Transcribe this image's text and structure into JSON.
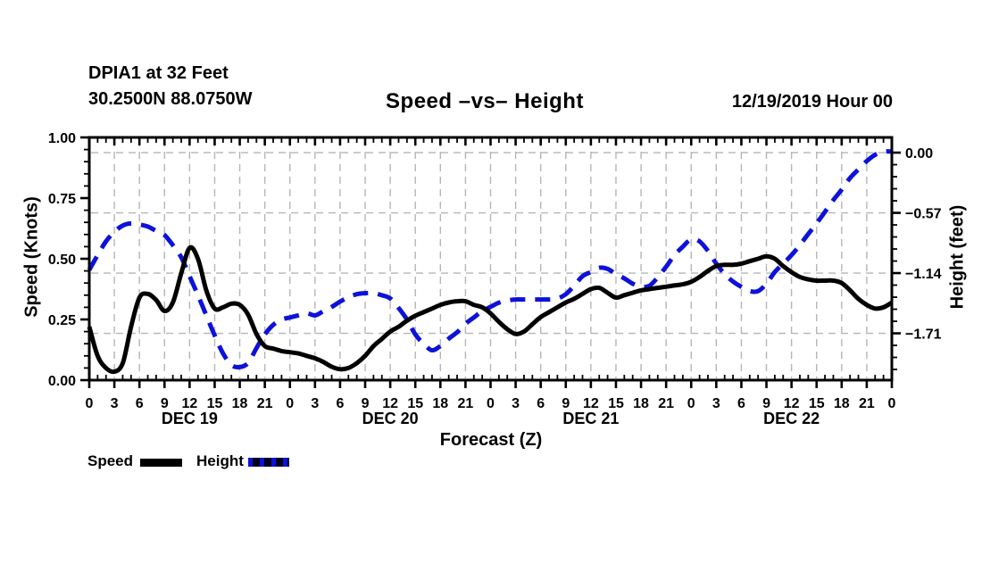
{
  "header": {
    "station": "DPIA1 at 32 Feet",
    "coords": "30.2500N 88.0750W",
    "title": "Speed –vs– Height",
    "datetime": "12/19/2019 Hour 00"
  },
  "axes": {
    "left_title": "Speed (Knots)",
    "right_title": "Height (feet)",
    "x_title": "Forecast (Z)"
  },
  "legend": {
    "position": "bottom-left",
    "speed_label": "Speed",
    "height_label": "Height"
  },
  "colors": {
    "speed_line": "#000000",
    "height_line": "#0d12d9",
    "grid": "#b5b5b5",
    "text": "#000000",
    "background": "#ffffff"
  },
  "chart_data": {
    "type": "line",
    "title": "Speed –vs– Height",
    "xlabel": "Forecast (Z)",
    "x_start_hour": 0,
    "x_step_hours": 1,
    "x_hours_total": 96,
    "x_tick_labels": [
      "0",
      "3",
      "6",
      "9",
      "12",
      "15",
      "18",
      "21",
      "0",
      "3",
      "6",
      "9",
      "12",
      "15",
      "18",
      "21",
      "0",
      "3",
      "6",
      "9",
      "12",
      "15",
      "18",
      "21",
      "0",
      "3",
      "6",
      "9",
      "12",
      "15",
      "18",
      "21",
      "0"
    ],
    "day_labels": [
      "DEC 19",
      "DEC 20",
      "DEC 21",
      "DEC 22"
    ],
    "grid": "dashed, vertical every 3h, horizontal at right-axis ticks",
    "left_axis": {
      "label": "Speed (Knots)",
      "min": 0.0,
      "max": 1.0,
      "tick_values": [
        0.0,
        0.25,
        0.5,
        0.75,
        1.0
      ],
      "tick_labels": [
        "0.00",
        "0.25",
        "0.50",
        "0.75",
        "1.00"
      ],
      "minor_step": 0.05
    },
    "right_axis": {
      "label": "Height (feet)",
      "min": -2.153,
      "max": 0.144,
      "tick_values": [
        0.0,
        -0.57,
        -1.14,
        -1.71
      ],
      "tick_labels": [
        "0.00",
        "−0.57",
        "−1.14",
        "−1.71"
      ],
      "minor_step": 0.114
    },
    "series": [
      {
        "name": "Speed",
        "axis": "left",
        "units": "knots",
        "style": "solid-black",
        "values": [
          0.22,
          0.1,
          0.05,
          0.035,
          0.07,
          0.22,
          0.34,
          0.355,
          0.33,
          0.285,
          0.32,
          0.44,
          0.545,
          0.5,
          0.37,
          0.295,
          0.3,
          0.315,
          0.31,
          0.27,
          0.19,
          0.14,
          0.13,
          0.12,
          0.115,
          0.11,
          0.1,
          0.09,
          0.075,
          0.055,
          0.045,
          0.05,
          0.07,
          0.1,
          0.14,
          0.17,
          0.2,
          0.22,
          0.245,
          0.265,
          0.28,
          0.295,
          0.31,
          0.32,
          0.325,
          0.325,
          0.31,
          0.3,
          0.275,
          0.24,
          0.21,
          0.19,
          0.2,
          0.23,
          0.26,
          0.28,
          0.3,
          0.32,
          0.335,
          0.355,
          0.375,
          0.38,
          0.36,
          0.34,
          0.35,
          0.36,
          0.37,
          0.375,
          0.38,
          0.385,
          0.39,
          0.395,
          0.405,
          0.425,
          0.45,
          0.47,
          0.475,
          0.475,
          0.48,
          0.49,
          0.5,
          0.51,
          0.5,
          0.47,
          0.445,
          0.425,
          0.415,
          0.41,
          0.41,
          0.41,
          0.4,
          0.37,
          0.335,
          0.31,
          0.295,
          0.3,
          0.32
        ]
      },
      {
        "name": "Height",
        "axis": "right",
        "units": "feet",
        "style": "dashed-blue",
        "values": [
          -1.11,
          -0.97,
          -0.84,
          -0.75,
          -0.69,
          -0.67,
          -0.68,
          -0.7,
          -0.74,
          -0.78,
          -0.875,
          -0.99,
          -1.17,
          -1.35,
          -1.54,
          -1.73,
          -1.9,
          -2.01,
          -2.03,
          -1.99,
          -1.85,
          -1.72,
          -1.63,
          -1.58,
          -1.56,
          -1.54,
          -1.52,
          -1.54,
          -1.5,
          -1.46,
          -1.41,
          -1.37,
          -1.34,
          -1.33,
          -1.33,
          -1.35,
          -1.38,
          -1.47,
          -1.58,
          -1.72,
          -1.81,
          -1.87,
          -1.83,
          -1.76,
          -1.7,
          -1.62,
          -1.56,
          -1.5,
          -1.46,
          -1.42,
          -1.4,
          -1.39,
          -1.39,
          -1.39,
          -1.39,
          -1.39,
          -1.38,
          -1.34,
          -1.26,
          -1.17,
          -1.13,
          -1.09,
          -1.1,
          -1.15,
          -1.19,
          -1.24,
          -1.27,
          -1.26,
          -1.18,
          -1.08,
          -0.97,
          -0.89,
          -0.82,
          -0.84,
          -0.93,
          -1.05,
          -1.15,
          -1.22,
          -1.27,
          -1.31,
          -1.31,
          -1.24,
          -1.13,
          -1.05,
          -0.97,
          -0.875,
          -0.77,
          -0.67,
          -0.56,
          -0.45,
          -0.35,
          -0.24,
          -0.16,
          -0.08,
          -0.02,
          0.01,
          0.01
        ]
      }
    ]
  }
}
